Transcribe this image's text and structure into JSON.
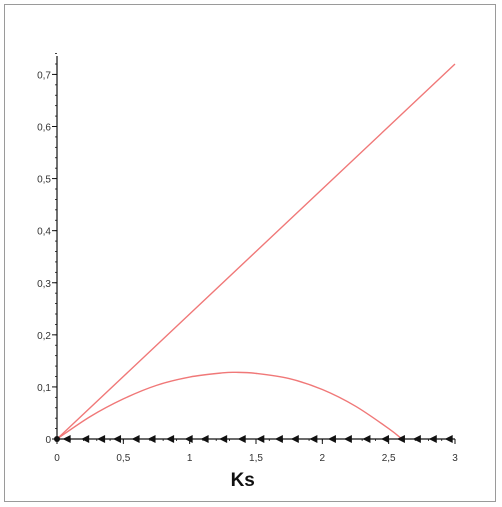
{
  "chart_data": {
    "type": "line",
    "xlabel": "Ks",
    "ylabel": "",
    "xlim": [
      0,
      3
    ],
    "ylim": [
      0,
      0.7
    ],
    "x_ticks": [
      0,
      0.5,
      1,
      1.5,
      2,
      2.5,
      3
    ],
    "x_tick_labels": [
      "0",
      "0,5",
      "1",
      "1,5",
      "2",
      "2,5",
      "3"
    ],
    "y_ticks": [
      0,
      0.1,
      0.2,
      0.3,
      0.4,
      0.5,
      0.6,
      0.7
    ],
    "y_tick_labels": [
      "0",
      "0,1",
      "0,2",
      "0,3",
      "0,4",
      "0,5",
      "0,6",
      "0,7"
    ],
    "grid": false,
    "legend": "none",
    "series": [
      {
        "color": "#f07878",
        "x": [
          0,
          0.5,
          1,
          1.5,
          2,
          2.5,
          3
        ],
        "y": [
          0,
          0.12,
          0.24,
          0.36,
          0.48,
          0.6,
          0.72
        ]
      },
      {
        "color": "#f07878",
        "x": [
          0,
          0.25,
          0.5,
          0.75,
          1,
          1.25,
          1.35,
          1.5,
          1.75,
          2,
          2.25,
          2.5,
          2.6
        ],
        "y": [
          0,
          0.043,
          0.077,
          0.103,
          0.119,
          0.127,
          0.128,
          0.126,
          0.116,
          0.095,
          0.063,
          0.02,
          0
        ]
      }
    ],
    "direction_arrows": {
      "y": 0,
      "x": [
        0.08,
        0.22,
        0.34,
        0.46,
        0.6,
        0.72,
        0.86,
        1.0,
        1.12,
        1.26,
        1.4,
        1.54,
        1.68,
        1.8,
        1.94,
        2.08,
        2.2,
        2.34,
        2.48,
        2.6,
        2.72,
        2.84,
        2.96
      ],
      "direction": "left",
      "color": "#111111"
    }
  }
}
